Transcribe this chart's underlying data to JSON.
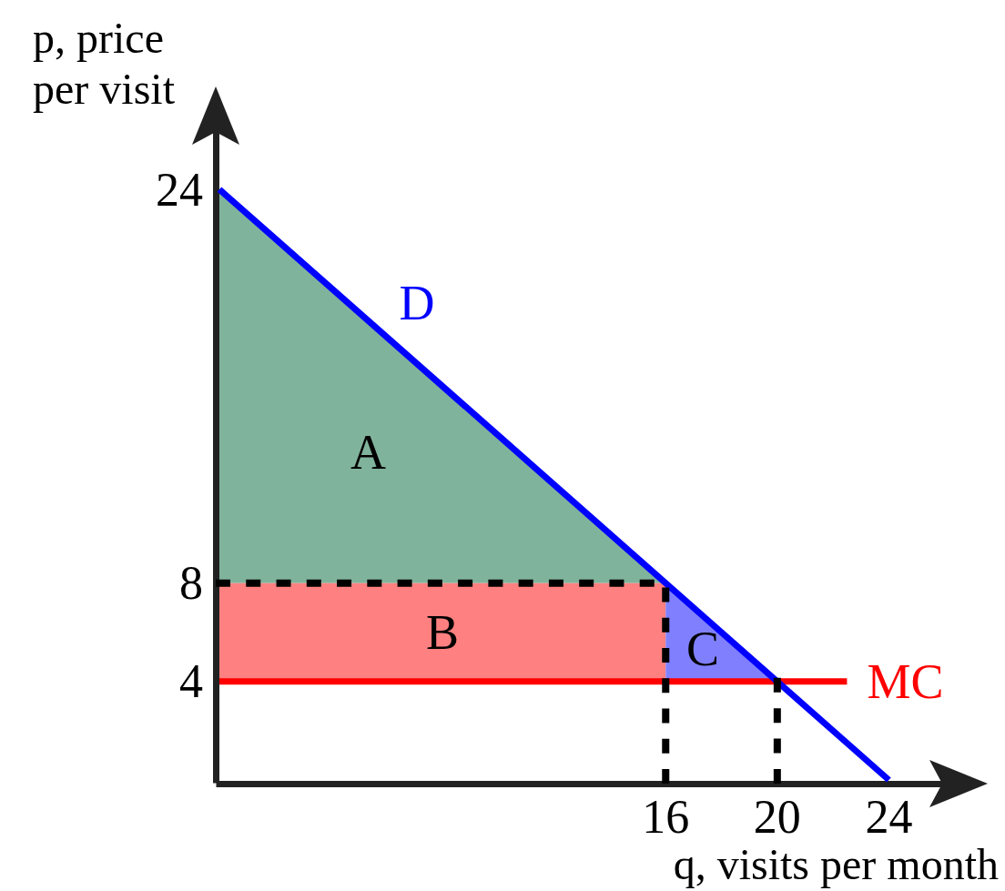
{
  "chart_data": {
    "type": "line",
    "xlabel": "q, visits per month",
    "ylabel": "p, price per visit",
    "xlim": [
      0,
      26.5
    ],
    "ylim": [
      0,
      27
    ],
    "xticks": [
      16,
      20,
      24
    ],
    "yticks": [
      4,
      8,
      24
    ],
    "marker": "none",
    "annotations": [
      "A",
      "B",
      "C"
    ],
    "series": [
      {
        "type": "line",
        "color": "#80b39c",
        "x": [
          0,
          16
        ],
        "values": [
          null,
          null
        ],
        "lower": [
          8,
          8
        ],
        "upper": [
          24,
          8
        ]
      },
      {
        "type": "line",
        "color": "#ff8080",
        "x": [
          0,
          16
        ],
        "values": [
          null,
          null
        ],
        "lower": [
          4,
          4
        ],
        "upper": [
          8,
          8
        ]
      },
      {
        "type": "line",
        "color": "#8080ff",
        "x": [
          16,
          20
        ],
        "values": [
          null,
          null
        ],
        "lower": [
          4,
          4
        ],
        "upper": [
          8,
          4
        ]
      },
      {
        "name": "MC",
        "type": "line",
        "color": "#ff0000",
        "x": [
          0,
          22.5
        ],
        "values": [
          4,
          4
        ]
      },
      {
        "name": "D",
        "type": "line",
        "color": "#0000ff",
        "x": [
          0,
          24
        ],
        "values": [
          24,
          0
        ]
      },
      {
        "type": "line",
        "color": "#000000",
        "line_style": "dashed",
        "x": [
          0,
          16,
          16
        ],
        "values": [
          8,
          8,
          0
        ]
      },
      {
        "type": "line",
        "color": "#000000",
        "line_style": "dashed",
        "x": [
          20,
          20
        ],
        "values": [
          0,
          4
        ]
      }
    ]
  }
}
